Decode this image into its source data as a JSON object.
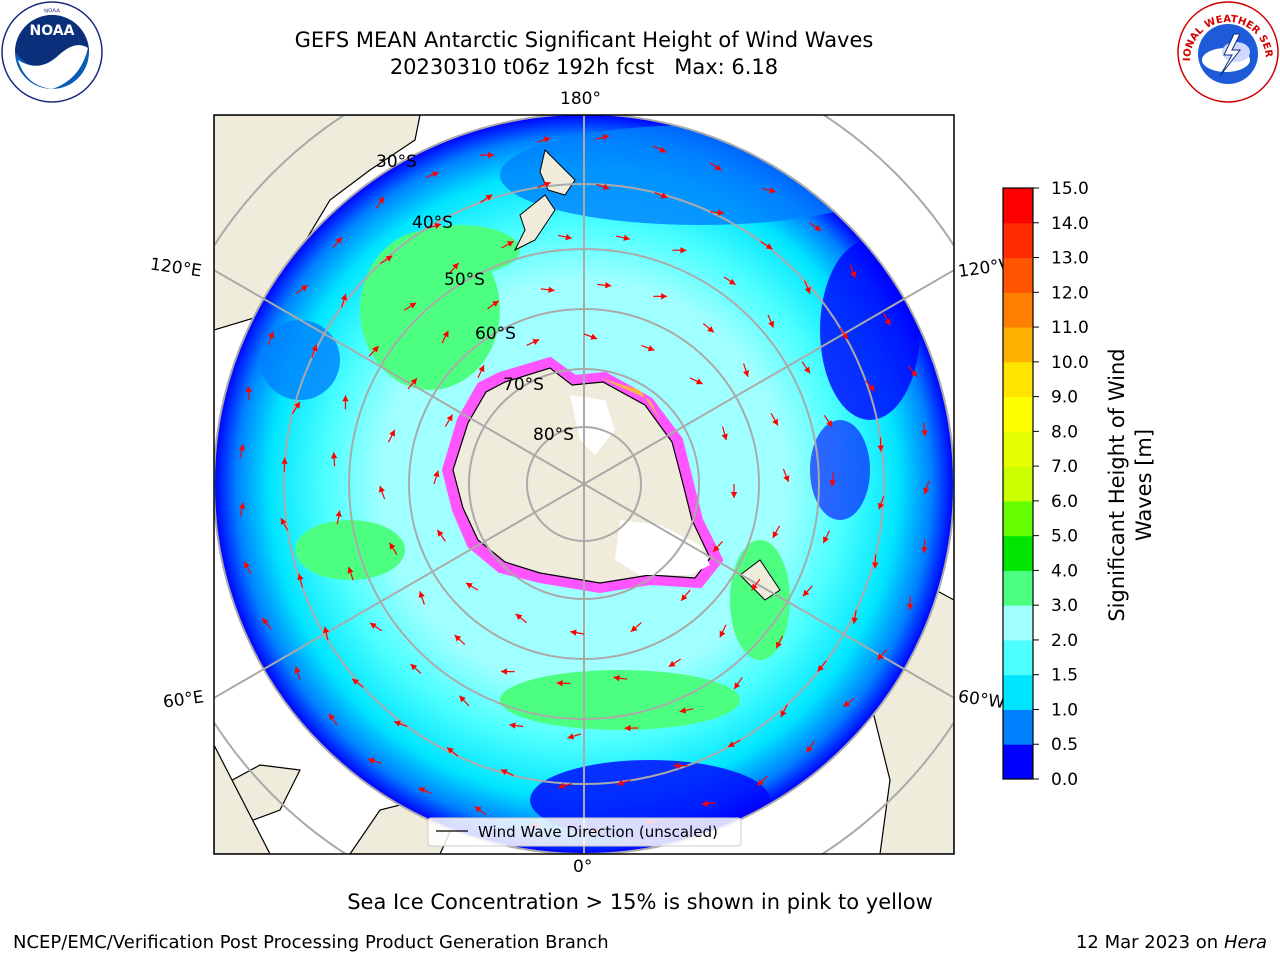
{
  "title": {
    "line1": "GEFS MEAN Antarctic Significant Height of Wind Waves",
    "line2": "20230310 t06z 192h fcst   Max: 6.18"
  },
  "map": {
    "projection": "south polar stereographic",
    "longitude_labels": [
      "180°",
      "120°E",
      "120°W",
      "60°E",
      "60°W",
      "0°"
    ],
    "latitude_labels": [
      "30°S",
      "40°S",
      "50°S",
      "60°S",
      "70°S",
      "80°S"
    ],
    "legend_label": "Wind Wave Direction (unscaled)",
    "arrow_color": "#ff0000",
    "land_color": "#efecdc",
    "ice_color_pink": "#ff55ff",
    "ice_color_yellow": "#ffd700"
  },
  "colorbar": {
    "label": "Significant Height of Wind Waves [m]",
    "label_line1": "Significant Height of Wind",
    "label_line2": "Waves [m]",
    "ticks": [
      "0.0",
      "0.5",
      "1.0",
      "1.5",
      "2.0",
      "3.0",
      "4.0",
      "5.0",
      "6.0",
      "7.0",
      "8.0",
      "9.0",
      "10.0",
      "11.0",
      "12.0",
      "13.0",
      "14.0",
      "15.0"
    ],
    "colors": [
      "#0000ff",
      "#0080ff",
      "#00e5ff",
      "#4dffff",
      "#a0ffff",
      "#4dff80",
      "#00e600",
      "#66ff00",
      "#ccff00",
      "#e5ff00",
      "#ffff00",
      "#ffe500",
      "#ffb300",
      "#ff8000",
      "#ff5500",
      "#ff2a00",
      "#ff0000"
    ]
  },
  "logos": {
    "left": "NOAA",
    "right": "NATIONAL WEATHER SERVICE"
  },
  "notes": {
    "ice": "Sea Ice Concentration > 15% is shown in pink to yellow",
    "footer_left": "NCEP/EMC/Verification Post Processing Product Generation Branch",
    "footer_date": "12 Mar 2023 on",
    "footer_host": "Hera"
  }
}
